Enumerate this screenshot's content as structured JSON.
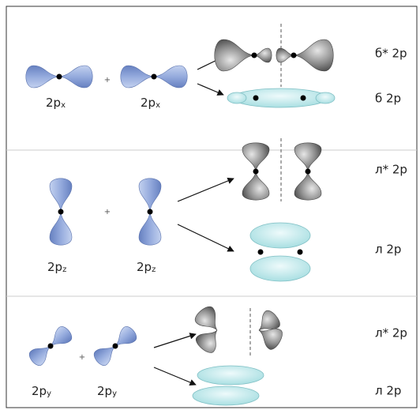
{
  "rows": [
    {
      "left": {
        "main": "2p",
        "sub": "x"
      },
      "plus": "+",
      "right": {
        "main": "2p",
        "sub": "x"
      },
      "antibonding": "б* 2p",
      "bonding": "б 2p"
    },
    {
      "left": {
        "main": "2p",
        "sub": "z"
      },
      "plus": "+",
      "right": {
        "main": "2p",
        "sub": "z"
      },
      "antibonding": "л* 2p",
      "bonding": "л 2p"
    },
    {
      "left": {
        "main": "2p",
        "sub": "y"
      },
      "plus": "+",
      "right": {
        "main": "2p",
        "sub": "y"
      },
      "antibonding": "л* 2p",
      "bonding": "л 2p"
    }
  ]
}
